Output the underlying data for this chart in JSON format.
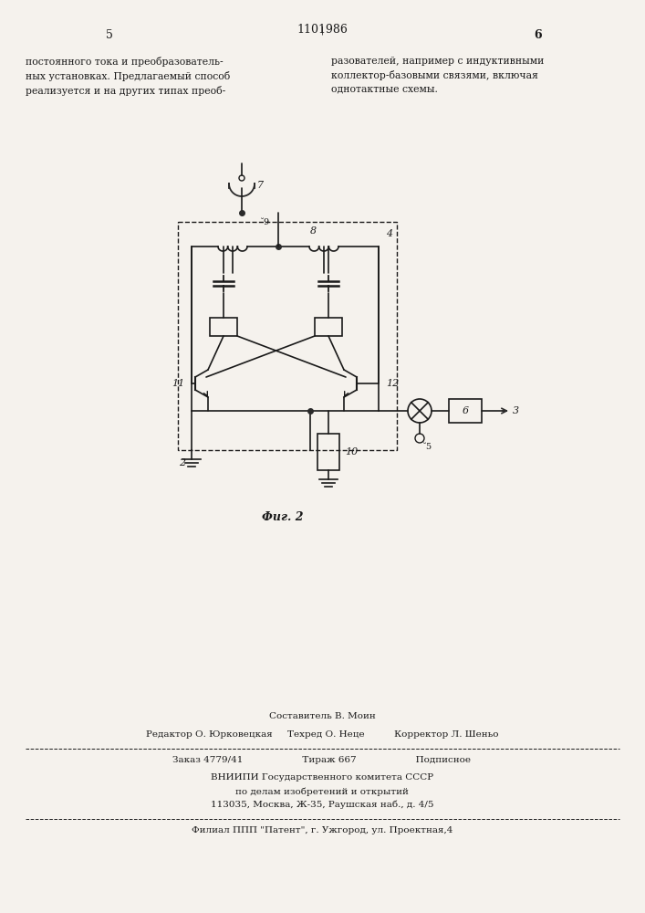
{
  "page_number_left": "5",
  "page_number_center": "1101986",
  "page_number_right": "6",
  "text_left": "постоянного тока и преобразователь-\nных установках. Предлагаемый способ\nреализуется и на других типах преоб-",
  "text_right": "разователей, например с индуктивными\nколлектор-базовыми связями, включая\nоднотактные схемы.",
  "fig_label": "Фиг. 2",
  "editor_line": "Редактор О. Юрковецкая     Техред О. Неце          Корректор Л. Шеньо",
  "composer_line": "Составитель В. Моин",
  "order_line": "Заказ 4779/41                    Тираж 667                    Подписное",
  "vniip_line1": "ВНИИПИ Государственного комитета СССР",
  "vniip_line2": "по делам изобретений и открытий",
  "vniip_line3": "113035, Москва, Ж-35, Раушская наб., д. 4/5",
  "filial_line": "Филиал ППП \"Патент\", г. Ужгород, ул. Проектная,4",
  "bg_color": "#f5f2ed",
  "text_color": "#1a1a1a",
  "line_color": "#2a2a2a"
}
